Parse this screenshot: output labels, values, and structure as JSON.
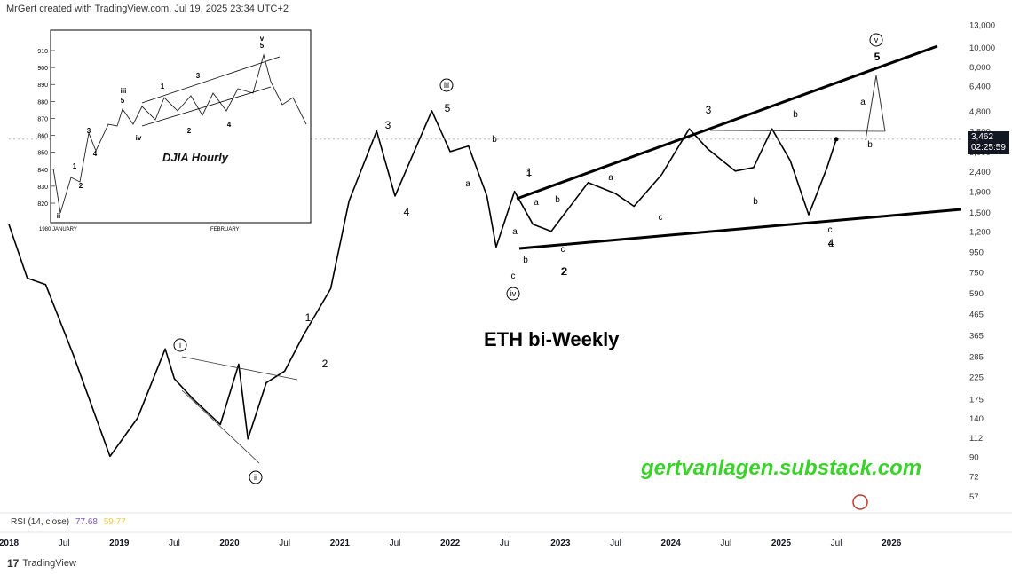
{
  "header": {
    "text": "MrGert created with TradingView.com, Jul 19, 2025 23:34 UTC+2"
  },
  "chart_data": [
    {
      "type": "line",
      "title": "ETH bi-Weekly",
      "y_scale": "log",
      "ylim": [
        50,
        14000
      ],
      "y_ticks": [
        "57",
        "72",
        "90",
        "112",
        "140",
        "175",
        "225",
        "285",
        "365",
        "465",
        "590",
        "750",
        "950",
        "1,200",
        "1,500",
        "1,900",
        "2,400",
        "3,000",
        "3,800",
        "4,800",
        "6,400",
        "8,000",
        "10,000",
        "13,000"
      ],
      "x_ticks": [
        "2018",
        "Jul",
        "2019",
        "Jul",
        "2020",
        "Jul",
        "2021",
        "Jul",
        "2022",
        "Jul",
        "2023",
        "Jul",
        "2024",
        "Jul",
        "2025",
        "Jul",
        "2026"
      ],
      "x": [
        "2018-01",
        "2018-03",
        "2018-05",
        "2018-08",
        "2018-12",
        "2019-03",
        "2019-06",
        "2019-07",
        "2019-09",
        "2019-12",
        "2020-02",
        "2020-03",
        "2020-05",
        "2020-07",
        "2020-09",
        "2020-12",
        "2021-02",
        "2021-05",
        "2021-07",
        "2021-11",
        "2022-01",
        "2022-03",
        "2022-05",
        "2022-06",
        "2022-08",
        "2022-10",
        "2022-12",
        "2023-04",
        "2023-07",
        "2023-09",
        "2023-12",
        "2024-03",
        "2024-05",
        "2024-08",
        "2024-10",
        "2024-12",
        "2025-02",
        "2025-04",
        "2025-06",
        "2025-07"
      ],
      "series": [
        {
          "values": [
            1300,
            700,
            650,
            290,
            90,
            140,
            310,
            220,
            175,
            130,
            260,
            110,
            210,
            240,
            360,
            620,
            1700,
            3800,
            1800,
            4800,
            3000,
            3200,
            1800,
            1000,
            1900,
            1300,
            1200,
            2100,
            1850,
            1600,
            2300,
            3900,
            3100,
            2400,
            2500,
            3900,
            2700,
            1450,
            2500,
            3462
          ]
        }
      ],
      "last_price": "3,462",
      "countdown": "02:25:59",
      "annotations": {
        "minor_labels": [
          "1",
          "2",
          "1",
          "2",
          "3",
          "4",
          "5",
          "a",
          "b",
          "c",
          "a",
          "b",
          "c",
          "1",
          "2",
          "a",
          "b",
          "c",
          "a",
          "b",
          "3",
          "a",
          "b",
          "c",
          "4",
          "a",
          "b",
          "5"
        ],
        "circled_labels": [
          "i",
          "ii",
          "iii",
          "iv",
          "v"
        ]
      },
      "watermark": "gertvanlagen.substack.com",
      "rsi": {
        "label": "RSI (14, close)",
        "value1": "77.68",
        "value2": "59.77"
      }
    },
    {
      "type": "line",
      "title": "DJIA Hourly",
      "y_ticks": [
        "820",
        "830",
        "840",
        "850",
        "860",
        "870",
        "880",
        "890",
        "900",
        "910"
      ],
      "x_ticks": [
        "1980 JANUARY",
        "FEBRUARY"
      ],
      "wave_labels": [
        "ii",
        "1",
        "2",
        "3",
        "4",
        "iii",
        "5",
        "iv",
        "1",
        "2",
        "3",
        "4",
        "v",
        "5"
      ]
    }
  ],
  "footer": {
    "brand": "TradingView"
  }
}
